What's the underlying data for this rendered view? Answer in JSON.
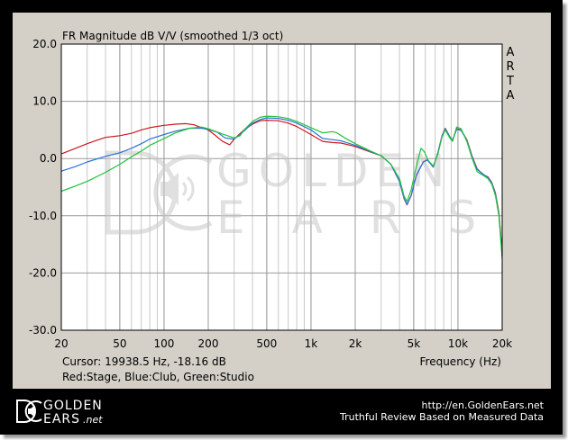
{
  "chart_data": {
    "type": "line",
    "title": "FR Magnitude dB V/V (smoothed 1/3 oct)",
    "xlabel": "Frequency (Hz)",
    "ylabel": "",
    "x_scale": "log",
    "xlim": [
      20,
      20000
    ],
    "ylim": [
      -30,
      20
    ],
    "x_ticks": [
      20,
      50,
      100,
      200,
      500,
      1000,
      2000,
      5000,
      10000,
      20000
    ],
    "x_tick_labels": [
      "20",
      "50",
      "100",
      "200",
      "500",
      "1k",
      "2k",
      "5k",
      "10k",
      "20k"
    ],
    "y_ticks": [
      20,
      10,
      0,
      -10,
      -20,
      -30
    ],
    "y_tick_labels": [
      "20.0",
      "10.0",
      "0.0",
      "-10.0",
      "-20.0",
      "-30.0"
    ],
    "grid": true,
    "side_label": "ARTA",
    "cursor_text": "Cursor: 19938.5 Hz, -18.16 dB",
    "legend_text": "Red:Stage, Blue:Club, Green:Studio",
    "series": [
      {
        "color": "#d0161e",
        "points": [
          [
            20,
            0.8
          ],
          [
            25,
            1.8
          ],
          [
            30,
            2.6
          ],
          [
            35,
            3.2
          ],
          [
            40,
            3.7
          ],
          [
            50,
            4
          ],
          [
            60,
            4.4
          ],
          [
            70,
            5
          ],
          [
            80,
            5.4
          ],
          [
            100,
            5.8
          ],
          [
            120,
            6
          ],
          [
            140,
            6.1
          ],
          [
            160,
            5.9
          ],
          [
            180,
            5.4
          ],
          [
            200,
            5
          ],
          [
            220,
            4.2
          ],
          [
            250,
            3
          ],
          [
            280,
            2.4
          ],
          [
            300,
            3.4
          ],
          [
            350,
            5
          ],
          [
            400,
            6
          ],
          [
            450,
            6.6
          ],
          [
            500,
            6.7
          ],
          [
            600,
            6.6
          ],
          [
            700,
            6.2
          ],
          [
            800,
            5.6
          ],
          [
            1000,
            4.2
          ],
          [
            1200,
            3
          ],
          [
            1400,
            2.8
          ],
          [
            1600,
            2.7
          ],
          [
            2000,
            2.1
          ],
          [
            2500,
            1.2
          ],
          [
            3000,
            0.5
          ],
          [
            3500,
            -1
          ],
          [
            4000,
            -4
          ],
          [
            4300,
            -7
          ],
          [
            4500,
            -8.1
          ],
          [
            4800,
            -6.5
          ],
          [
            5200,
            -3
          ],
          [
            5800,
            -0.6
          ],
          [
            6200,
            -0.2
          ],
          [
            6800,
            -1.5
          ],
          [
            7300,
            1
          ],
          [
            7800,
            4
          ],
          [
            8200,
            5.3
          ],
          [
            8800,
            3.8
          ],
          [
            9200,
            3.2
          ],
          [
            9800,
            5.2
          ],
          [
            10500,
            5
          ],
          [
            11500,
            3.3
          ],
          [
            12500,
            0.4
          ],
          [
            13500,
            -1.8
          ],
          [
            15000,
            -2.9
          ],
          [
            16000,
            -3.2
          ],
          [
            17000,
            -4.2
          ],
          [
            18000,
            -6
          ],
          [
            19000,
            -9.5
          ],
          [
            20000,
            -16.5
          ]
        ]
      },
      {
        "color": "#2a72d8",
        "points": [
          [
            20,
            -2.2
          ],
          [
            25,
            -1.4
          ],
          [
            30,
            -0.6
          ],
          [
            40,
            0.4
          ],
          [
            50,
            1
          ],
          [
            60,
            1.8
          ],
          [
            70,
            2.6
          ],
          [
            80,
            3.4
          ],
          [
            100,
            4.2
          ],
          [
            120,
            4.8
          ],
          [
            150,
            5.3
          ],
          [
            180,
            5.3
          ],
          [
            200,
            5.1
          ],
          [
            230,
            4.6
          ],
          [
            260,
            3.6
          ],
          [
            300,
            3.4
          ],
          [
            350,
            4.8
          ],
          [
            400,
            6.2
          ],
          [
            450,
            6.8
          ],
          [
            500,
            7.1
          ],
          [
            600,
            7
          ],
          [
            700,
            6.7
          ],
          [
            800,
            6.2
          ],
          [
            1000,
            5
          ],
          [
            1200,
            3.5
          ],
          [
            1400,
            3.3
          ],
          [
            1600,
            3.1
          ],
          [
            2000,
            2.3
          ],
          [
            2500,
            1.3
          ],
          [
            3000,
            0.5
          ],
          [
            3500,
            -1
          ],
          [
            4000,
            -4
          ],
          [
            4300,
            -7
          ],
          [
            4500,
            -8
          ],
          [
            4800,
            -6.5
          ],
          [
            5200,
            -3
          ],
          [
            5800,
            -0.6
          ],
          [
            6200,
            -0.3
          ],
          [
            6800,
            -1.5
          ],
          [
            7300,
            1
          ],
          [
            7800,
            4
          ],
          [
            8200,
            5.2
          ],
          [
            8800,
            3.8
          ],
          [
            9200,
            3.2
          ],
          [
            9800,
            5.1
          ],
          [
            10500,
            4.9
          ],
          [
            11500,
            3.2
          ],
          [
            12500,
            0.3
          ],
          [
            13500,
            -1.9
          ],
          [
            15000,
            -2.8
          ],
          [
            16000,
            -3.3
          ],
          [
            17000,
            -4.3
          ],
          [
            18000,
            -6.2
          ],
          [
            19000,
            -9.8
          ],
          [
            20000,
            -17
          ]
        ]
      },
      {
        "color": "#1ec23a",
        "points": [
          [
            20,
            -5.7
          ],
          [
            25,
            -4.8
          ],
          [
            30,
            -4
          ],
          [
            40,
            -2.4
          ],
          [
            50,
            -1
          ],
          [
            60,
            0.3
          ],
          [
            70,
            1.3
          ],
          [
            80,
            2.3
          ],
          [
            100,
            3.5
          ],
          [
            120,
            4.5
          ],
          [
            150,
            5.3
          ],
          [
            180,
            5.5
          ],
          [
            200,
            5.2
          ],
          [
            250,
            4.3
          ],
          [
            300,
            3.6
          ],
          [
            330,
            4
          ],
          [
            350,
            5
          ],
          [
            400,
            6.5
          ],
          [
            450,
            7.2
          ],
          [
            500,
            7.4
          ],
          [
            600,
            7.3
          ],
          [
            700,
            7
          ],
          [
            800,
            6.5
          ],
          [
            1000,
            5.4
          ],
          [
            1200,
            4.5
          ],
          [
            1400,
            4.7
          ],
          [
            1500,
            4.5
          ],
          [
            1700,
            3.6
          ],
          [
            2000,
            2.6
          ],
          [
            2500,
            1.4
          ],
          [
            3000,
            0.5
          ],
          [
            3500,
            -1
          ],
          [
            4000,
            -3.5
          ],
          [
            4300,
            -6.6
          ],
          [
            4500,
            -7.5
          ],
          [
            4800,
            -5.5
          ],
          [
            5200,
            -1.5
          ],
          [
            5600,
            1.8
          ],
          [
            5900,
            1.2
          ],
          [
            6300,
            -0.4
          ],
          [
            6800,
            -1.3
          ],
          [
            7300,
            0.8
          ],
          [
            7800,
            3.8
          ],
          [
            8200,
            5
          ],
          [
            8800,
            3.6
          ],
          [
            9200,
            3
          ],
          [
            9800,
            5.5
          ],
          [
            10500,
            5.2
          ],
          [
            11500,
            3
          ],
          [
            12500,
            0
          ],
          [
            13500,
            -2.3
          ],
          [
            15000,
            -3
          ],
          [
            16000,
            -3.5
          ],
          [
            17000,
            -4.5
          ],
          [
            18000,
            -6.5
          ],
          [
            19000,
            -10
          ],
          [
            20000,
            -17.5
          ]
        ]
      }
    ]
  },
  "watermark": {
    "top_word": "GOLDEN",
    "bottom_word": "EARS"
  },
  "footer": {
    "logo_top": "GOLDEN",
    "logo_bottom": "EARS",
    "logo_suffix": ".net",
    "url": "http://en.GoldenEars.net",
    "tagline": "Truthful Review Based on Measured Data"
  }
}
